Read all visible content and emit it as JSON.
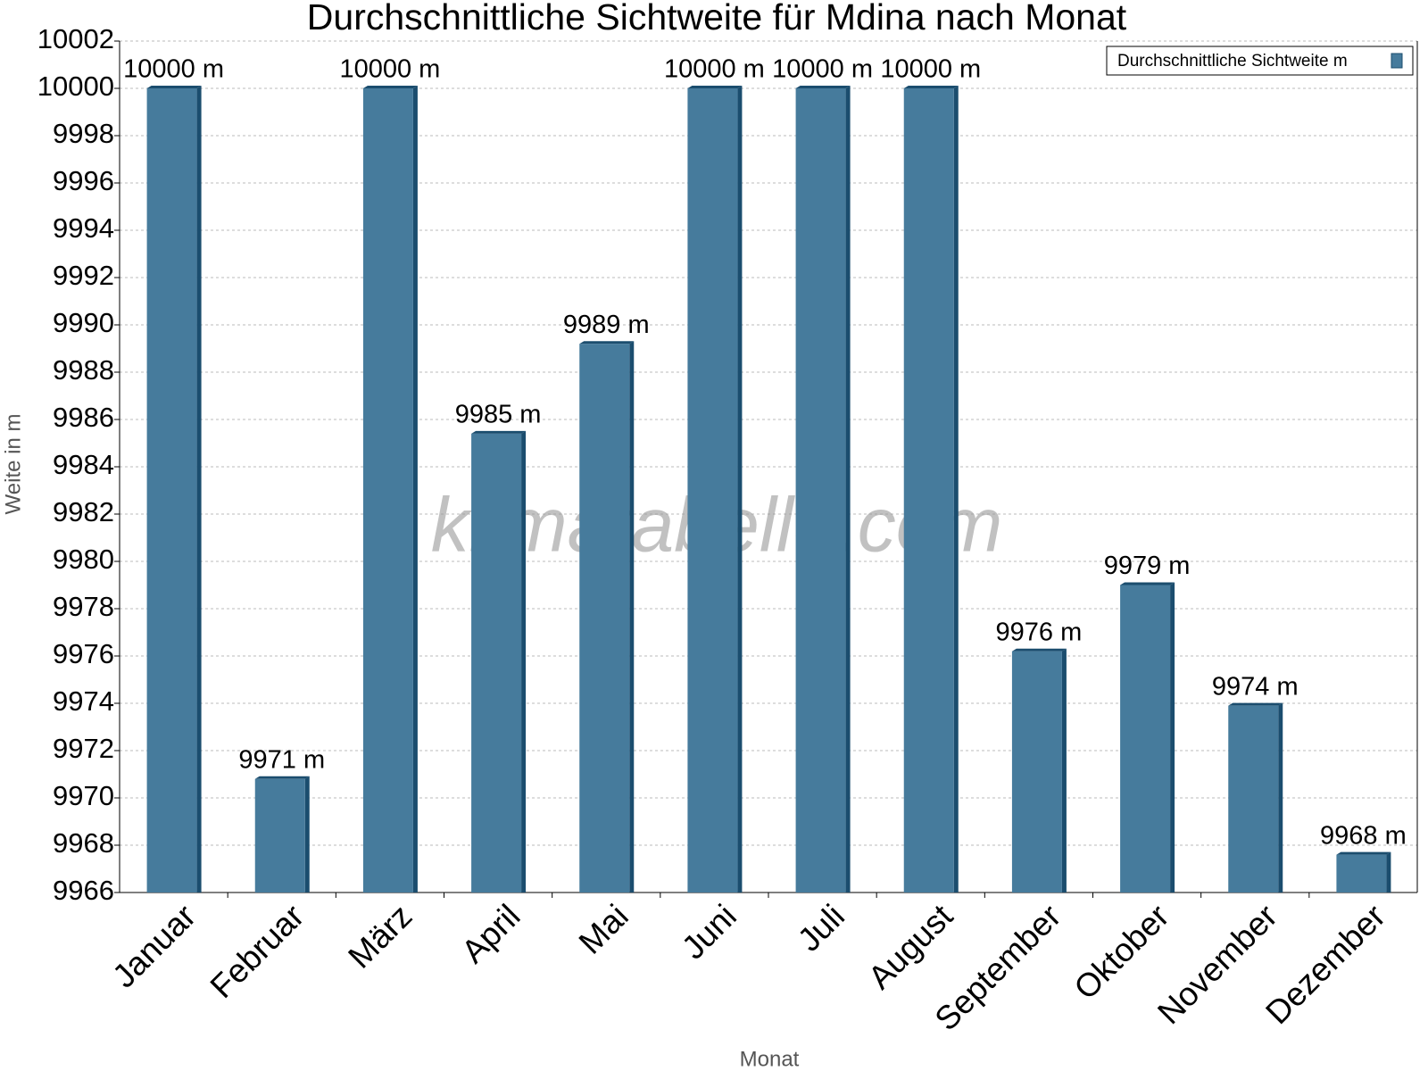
{
  "chart_data": {
    "type": "bar",
    "title": "Durchschnittliche Sichtweite für Mdina nach Monat",
    "x_label": "Monat",
    "y_label": "Weite in m",
    "watermark": "klimatabelle.com",
    "categories": [
      "Januar",
      "Februar",
      "März",
      "April",
      "Mai",
      "Juni",
      "Juli",
      "August",
      "September",
      "Oktober",
      "November",
      "Dezember"
    ],
    "series": [
      {
        "name": "Durchschnittliche Sichtweite m",
        "color": "#467b9c",
        "values": [
          10000,
          9970.8,
          10000,
          9985.4,
          9989.2,
          10000,
          10000,
          10000,
          9976.2,
          9979.0,
          9973.9,
          9967.6
        ],
        "value_labels": [
          "10000 m",
          "9971 m",
          "10000 m",
          "9985 m",
          "9989 m",
          "10000 m",
          "10000 m",
          "10000 m",
          "9976 m",
          "9979 m",
          "9974 m",
          "9968 m"
        ]
      }
    ],
    "ylim": [
      9966,
      10002
    ],
    "yticks": [
      9966,
      9968,
      9970,
      9972,
      9974,
      9976,
      9978,
      9980,
      9982,
      9984,
      9986,
      9988,
      9990,
      9992,
      9994,
      9996,
      9998,
      10000,
      10002
    ],
    "grid": true,
    "legend": "top-right"
  }
}
